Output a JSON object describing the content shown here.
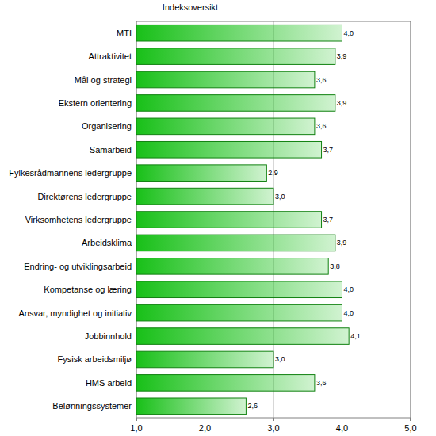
{
  "chart_data": {
    "type": "bar",
    "orientation": "horizontal",
    "title": "Indeksoversikt",
    "categories": [
      "MTI",
      "Attraktivitet",
      "Mål og strategi",
      "Ekstern orientering",
      "Organisering",
      "Samarbeid",
      "Fylkesrådmannens ledergruppe",
      "Direktørens ledergruppe",
      "Virksomhetens ledergruppe",
      "Arbeidsklima",
      "Endring- og utviklingsarbeid",
      "Kompetanse og læring",
      "Ansvar, myndighet og initiativ",
      "Jobbinnhold",
      "Fysisk arbeidsmiljø",
      "HMS arbeid",
      "Belønningssystemer"
    ],
    "values": [
      4.0,
      3.9,
      3.6,
      3.9,
      3.6,
      3.7,
      2.9,
      3.0,
      3.7,
      3.9,
      3.8,
      4.0,
      4.0,
      4.1,
      3.0,
      3.6,
      2.6
    ],
    "value_labels": [
      "4,0",
      "3,9",
      "3,6",
      "3,9",
      "3,6",
      "3,7",
      "2,9",
      "3,0",
      "3,7",
      "3,9",
      "3,8",
      "4,0",
      "4,0",
      "4,1",
      "3,0",
      "3,6",
      "2,6"
    ],
    "color": "#18c018",
    "data_labels": true,
    "grid": true,
    "xlim": [
      1,
      5
    ],
    "xticks": [
      {
        "value": 1,
        "label": "1,0"
      },
      {
        "value": 2,
        "label": "2,0"
      },
      {
        "value": 3,
        "label": "3,0"
      },
      {
        "value": 4,
        "label": "4,0"
      },
      {
        "value": 5,
        "label": "5,0"
      }
    ]
  }
}
